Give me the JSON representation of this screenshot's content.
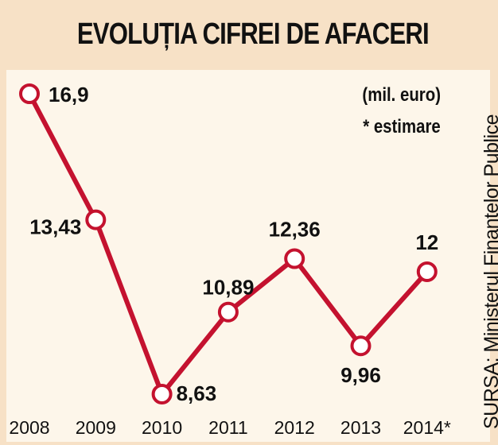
{
  "header": {
    "title": "EVOLUȚIA CIFREI DE AFACERI"
  },
  "notes": {
    "unit": "(mil. euro)",
    "estimate": "* estimare"
  },
  "source": "SURSA: Ministerul Finanțelor Publice",
  "colors": {
    "line": "#c4122f",
    "background": "#f7e1c6",
    "panel": "#fdf6ea",
    "text": "#111111"
  },
  "chart_data": {
    "type": "line",
    "categories": [
      "2008",
      "2009",
      "2010",
      "2011",
      "2012",
      "2013",
      "2014*"
    ],
    "values": [
      16.9,
      13.43,
      8.63,
      10.89,
      12.36,
      9.96,
      12
    ],
    "data_labels": [
      "16,9",
      "13,43",
      "8,63",
      "10,89",
      "12,36",
      "9,96",
      "12"
    ],
    "unit": "(mil. euro)",
    "note": "* estimare",
    "ylim": [
      8.2,
      17.2
    ],
    "grid": false,
    "legend": "none"
  }
}
